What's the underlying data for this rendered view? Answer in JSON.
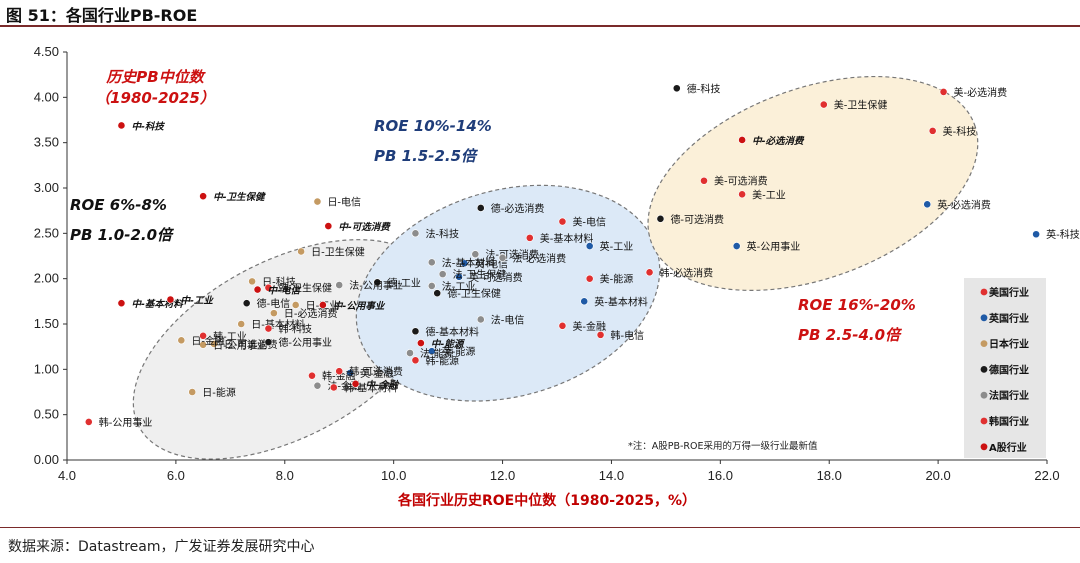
{
  "figure": {
    "title": "图 51：各国行业PB-ROE",
    "source": "数据来源：Datastream，广发证券发展研究中心"
  },
  "chart_data": {
    "type": "scatter",
    "title": "图 51：各国行业PB-ROE",
    "xlabel": "各国行业历史ROE中位数（1980-2025，%）",
    "ylabel": "",
    "xlim": [
      4.0,
      22.0
    ],
    "ylim": [
      0.0,
      4.5
    ],
    "xticks": [
      "4.0",
      "6.0",
      "8.0",
      "10.0",
      "12.0",
      "14.0",
      "16.0",
      "18.0",
      "20.0",
      "22.0"
    ],
    "yticks": [
      "0.00",
      "0.50",
      "1.00",
      "1.50",
      "2.00",
      "2.50",
      "3.00",
      "3.50",
      "4.00",
      "4.50"
    ],
    "grid": false,
    "legend_position": "right",
    "annotations": {
      "hist_pb": "历史PB中位数",
      "hist_period": "（1980-2025）",
      "low_roe": "ROE  6%-8%",
      "low_pb": "PB  1.0-2.0倍",
      "mid_roe": "ROE  10%-14%",
      "mid_pb": "PB  1.5-2.5倍",
      "high_roe": "ROE  16%-20%",
      "high_pb": "PB  2.5-4.0倍",
      "note": "*注：A股PB-ROE采用的万得一级行业最新值"
    },
    "colors": {
      "us": "#e03030",
      "uk": "#1f5aa6",
      "jp": "#c49a62",
      "de": "#1a1a1a",
      "fr": "#8c8c8c",
      "kr": "#e03030",
      "cn": "#cc1111",
      "ann_red": "#cc1111",
      "ann_blue": "#1f3d7a",
      "ellipse_blue": "#dce9f7",
      "ellipse_tan": "#fbf0d9",
      "ellipse_grey": "#efefef",
      "legend_bg": "#e6e6e6"
    },
    "series": [
      {
        "name": "美国行业",
        "key": "us",
        "points": [
          {
            "label": "美-必选消费",
            "x": 20.1,
            "y": 4.06
          },
          {
            "label": "美-卫生保健",
            "x": 17.9,
            "y": 3.92
          },
          {
            "label": "美-科技",
            "x": 19.9,
            "y": 3.63
          },
          {
            "label": "美-可选消费",
            "x": 15.7,
            "y": 3.08
          },
          {
            "label": "美-工业",
            "x": 16.4,
            "y": 2.93
          },
          {
            "label": "美-电信",
            "x": 13.1,
            "y": 2.63
          },
          {
            "label": "美-基本材料",
            "x": 12.5,
            "y": 2.45
          },
          {
            "label": "美-能源",
            "x": 13.6,
            "y": 2.0
          },
          {
            "label": "美-金融",
            "x": 13.1,
            "y": 1.48
          }
        ]
      },
      {
        "name": "英国行业",
        "key": "uk",
        "points": [
          {
            "label": "英-科技",
            "x": 21.8,
            "y": 2.49
          },
          {
            "label": "英-必选消费",
            "x": 19.8,
            "y": 2.82
          },
          {
            "label": "英-公用事业",
            "x": 16.3,
            "y": 2.36
          },
          {
            "label": "英-工业",
            "x": 13.6,
            "y": 2.36
          },
          {
            "label": "英-基本材料",
            "x": 13.5,
            "y": 1.75
          },
          {
            "label": "英-可选消费",
            "x": 11.2,
            "y": 2.02
          },
          {
            "label": "英-能源",
            "x": 10.7,
            "y": 1.2
          },
          {
            "label": "英-金融",
            "x": 9.2,
            "y": 0.96
          },
          {
            "label": "英-电信",
            "x": 11.3,
            "y": 2.17
          }
        ]
      },
      {
        "name": "日本行业",
        "key": "jp",
        "points": [
          {
            "label": "日-电信",
            "x": 8.6,
            "y": 2.85
          },
          {
            "label": "日-卫生保健",
            "x": 8.3,
            "y": 2.3
          },
          {
            "label": "日-科技",
            "x": 7.4,
            "y": 1.97
          },
          {
            "label": "日-工业",
            "x": 8.2,
            "y": 1.71
          },
          {
            "label": "日-必选消费",
            "x": 7.8,
            "y": 1.62
          },
          {
            "label": "日-基本材料",
            "x": 7.2,
            "y": 1.5
          },
          {
            "label": "日-可选消费",
            "x": 6.7,
            "y": 1.28
          },
          {
            "label": "日-公用事业",
            "x": 6.5,
            "y": 1.27
          },
          {
            "label": "日-金融",
            "x": 6.1,
            "y": 1.32
          },
          {
            "label": "日-能源",
            "x": 6.3,
            "y": 0.75
          }
        ]
      },
      {
        "name": "德国行业",
        "key": "de",
        "points": [
          {
            "label": "德-科技",
            "x": 15.2,
            "y": 4.1
          },
          {
            "label": "德-必选消费",
            "x": 11.6,
            "y": 2.78
          },
          {
            "label": "德-可选消费",
            "x": 14.9,
            "y": 2.66
          },
          {
            "label": "德-卫生保健",
            "x": 10.8,
            "y": 1.84
          },
          {
            "label": "德-工业",
            "x": 9.7,
            "y": 1.96
          },
          {
            "label": "德-电信",
            "x": 7.3,
            "y": 1.73
          },
          {
            "label": "德-公用事业",
            "x": 7.7,
            "y": 1.3
          },
          {
            "label": "德-基本材料",
            "x": 10.4,
            "y": 1.42
          }
        ]
      },
      {
        "name": "法国行业",
        "key": "fr",
        "points": [
          {
            "label": "法-科技",
            "x": 10.4,
            "y": 2.5
          },
          {
            "label": "法-可选消费",
            "x": 11.5,
            "y": 2.27
          },
          {
            "label": "法-必选消费",
            "x": 12.0,
            "y": 2.23
          },
          {
            "label": "法-基本材料",
            "x": 10.7,
            "y": 2.18
          },
          {
            "label": "法-卫生保健",
            "x": 10.9,
            "y": 2.05
          },
          {
            "label": "法-工业",
            "x": 10.7,
            "y": 1.92
          },
          {
            "label": "法-电信",
            "x": 11.6,
            "y": 1.55
          },
          {
            "label": "法-公用事业",
            "x": 9.0,
            "y": 1.93
          },
          {
            "label": "法-能源",
            "x": 10.3,
            "y": 1.18
          },
          {
            "label": "法-金融",
            "x": 8.6,
            "y": 0.82
          }
        ]
      },
      {
        "name": "韩国行业",
        "key": "kr",
        "points": [
          {
            "label": "韩-必选消费",
            "x": 14.7,
            "y": 2.07
          },
          {
            "label": "韩-卫生保健",
            "x": 7.7,
            "y": 1.9
          },
          {
            "label": "韩-电信",
            "x": 13.8,
            "y": 1.38
          },
          {
            "label": "韩-科技",
            "x": 7.7,
            "y": 1.45
          },
          {
            "label": "韩-金融",
            "x": 8.5,
            "y": 0.93
          },
          {
            "label": "韩-可选消费",
            "x": 9.0,
            "y": 0.98
          },
          {
            "label": "韩-能源",
            "x": 10.4,
            "y": 1.1
          },
          {
            "label": "韩-基本材料",
            "x": 8.9,
            "y": 0.8
          },
          {
            "label": "韩-工业",
            "x": 6.5,
            "y": 1.37
          },
          {
            "label": "韩-公用事业",
            "x": 4.4,
            "y": 0.42
          }
        ]
      },
      {
        "name": "A股行业",
        "key": "cn",
        "points": [
          {
            "label": "中-科技",
            "x": 5.0,
            "y": 3.69
          },
          {
            "label": "中-卫生保健",
            "x": 6.5,
            "y": 2.91
          },
          {
            "label": "中-可选消费",
            "x": 8.8,
            "y": 2.58
          },
          {
            "label": "中-必选消费",
            "x": 16.4,
            "y": 3.53
          },
          {
            "label": "中-基本材料",
            "x": 5.0,
            "y": 1.73
          },
          {
            "label": "中-工业",
            "x": 5.9,
            "y": 1.77
          },
          {
            "label": "中-电信",
            "x": 7.5,
            "y": 1.88
          },
          {
            "label": "中-公用事业",
            "x": 8.7,
            "y": 1.71
          },
          {
            "label": "中-能源",
            "x": 10.5,
            "y": 1.29
          },
          {
            "label": "中-金融",
            "x": 9.3,
            "y": 0.84
          }
        ]
      }
    ]
  }
}
